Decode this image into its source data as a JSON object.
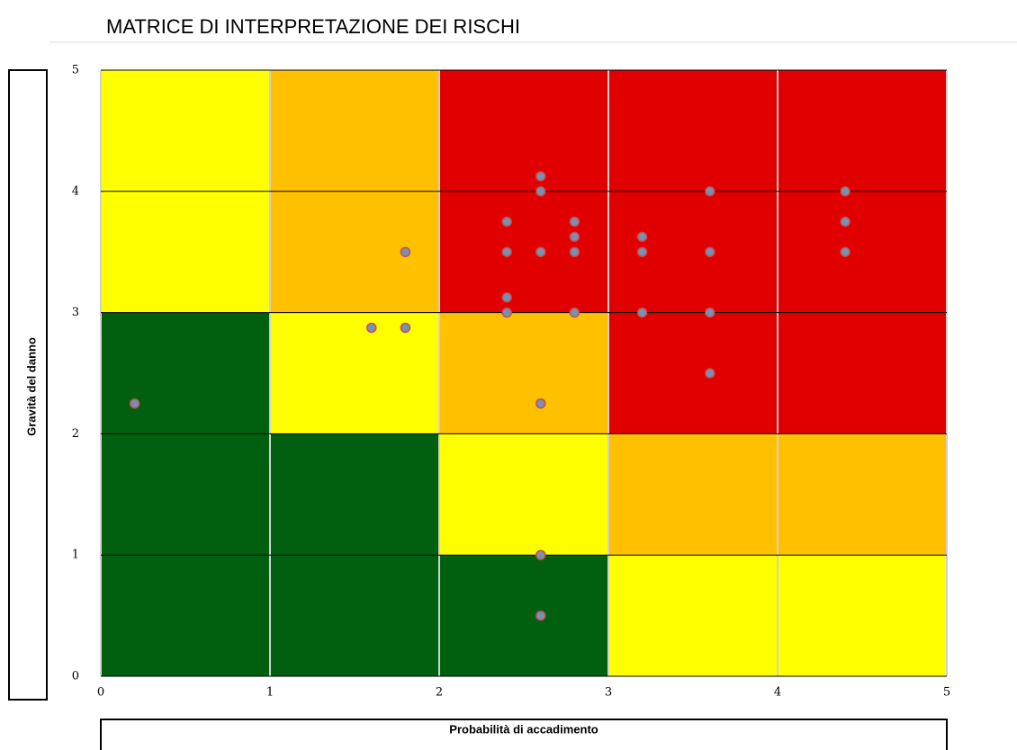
{
  "chart_data": {
    "type": "scatter",
    "title": "MATRICE DI INTERPRETAZIONE DEI RISCHI",
    "xlabel": "Probabilità di accadimento",
    "ylabel": "Gravità del danno",
    "xlim": [
      0,
      5
    ],
    "ylim": [
      0,
      5
    ],
    "xticks": [
      0,
      1,
      2,
      3,
      4,
      5
    ],
    "yticks": [
      0,
      1,
      2,
      3,
      4,
      5
    ],
    "grid": true,
    "zones": [
      [
        "#ffff00",
        "#ffc000",
        "#e00000",
        "#e00000",
        "#e00000"
      ],
      [
        "#ffff00",
        "#ffc000",
        "#e00000",
        "#e00000",
        "#e00000"
      ],
      [
        "#006010",
        "#ffff00",
        "#ffc000",
        "#e00000",
        "#e00000"
      ],
      [
        "#006010",
        "#006010",
        "#ffff00",
        "#ffc000",
        "#ffc000"
      ],
      [
        "#006010",
        "#006010",
        "#006010",
        "#ffff00",
        "#ffff00"
      ]
    ],
    "color": "#7a8fb4",
    "edge_color": "#c0504d",
    "x": [
      0.2,
      1.6,
      1.8,
      1.8,
      2.4,
      2.4,
      2.4,
      2.4,
      2.6,
      2.6,
      2.6,
      2.6,
      2.6,
      2.6,
      2.8,
      2.8,
      2.8,
      2.8,
      3.2,
      3.2,
      3.2,
      3.6,
      3.6,
      3.6,
      3.6,
      4.4,
      4.4,
      4.4
    ],
    "values": [
      2.25,
      2.875,
      2.875,
      3.5,
      3.75,
      3.5,
      3.125,
      3,
      4.125,
      4,
      3.5,
      2.25,
      1,
      0.5,
      3.75,
      3.625,
      3.5,
      3,
      3.625,
      3.5,
      3,
      4,
      3.5,
      3,
      2.5,
      4,
      3.75,
      3.5
    ]
  }
}
